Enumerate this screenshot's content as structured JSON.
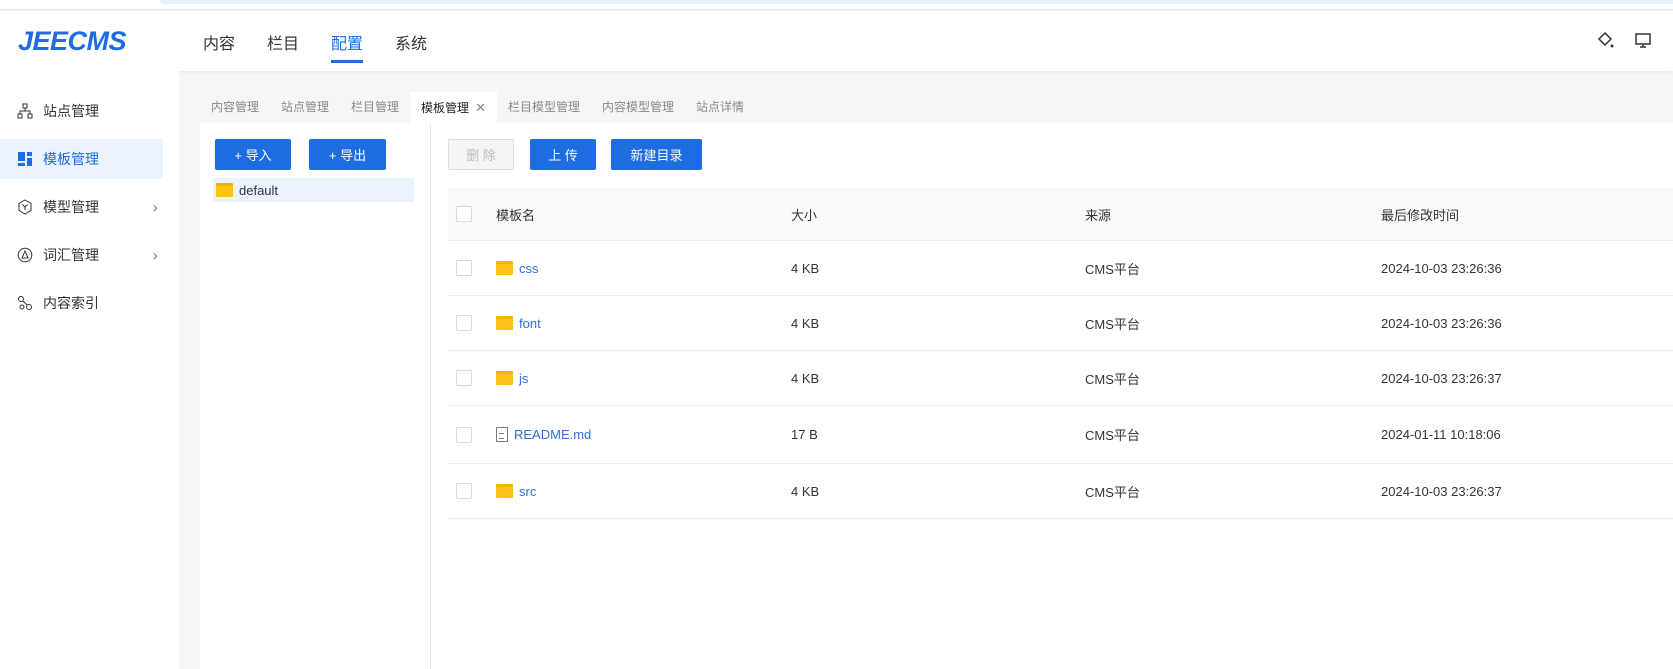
{
  "app": {
    "logo": "JEECMS"
  },
  "nav": [
    {
      "label": "内容"
    },
    {
      "label": "栏目"
    },
    {
      "label": "配置",
      "active": true
    },
    {
      "label": "系统"
    }
  ],
  "header_icons": [
    "theme-diamond-icon",
    "monitor-icon"
  ],
  "sidebar": {
    "items": [
      {
        "label": "站点管理",
        "icon": "sitemap-icon"
      },
      {
        "label": "模板管理",
        "icon": "template-icon",
        "active": true
      },
      {
        "label": "模型管理",
        "icon": "model-cube-icon",
        "expandable": true
      },
      {
        "label": "词汇管理",
        "icon": "vocabulary-icon",
        "expandable": true
      },
      {
        "label": "内容索引",
        "icon": "index-link-icon"
      }
    ]
  },
  "tabs": [
    {
      "label": "内容管理"
    },
    {
      "label": "站点管理"
    },
    {
      "label": "栏目管理"
    },
    {
      "label": "模板管理",
      "active": true,
      "close": "✕"
    },
    {
      "label": "栏目模型管理"
    },
    {
      "label": "内容模型管理"
    },
    {
      "label": "站点详情"
    }
  ],
  "left": {
    "import_label": "+ 导入",
    "export_label": "+ 导出",
    "tree": [
      {
        "label": "default"
      }
    ]
  },
  "toolbar": {
    "delete_label": "删 除",
    "upload_label": "上 传",
    "new_dir_label": "新建目录"
  },
  "table": {
    "columns": [
      "模板名",
      "大小",
      "来源",
      "最后修改时间"
    ],
    "rows": [
      {
        "name": "css",
        "type": "folder",
        "size": "4 KB",
        "source": "CMS平台",
        "modified": "2024-10-03 23:26:36"
      },
      {
        "name": "font",
        "type": "folder",
        "size": "4 KB",
        "source": "CMS平台",
        "modified": "2024-10-03 23:26:36"
      },
      {
        "name": "js",
        "type": "folder",
        "size": "4 KB",
        "source": "CMS平台",
        "modified": "2024-10-03 23:26:37"
      },
      {
        "name": "README.md",
        "type": "file",
        "size": "17 B",
        "source": "CMS平台",
        "modified": "2024-01-11 10:18:06"
      },
      {
        "name": "src",
        "type": "folder",
        "size": "4 KB",
        "source": "CMS平台",
        "modified": "2024-10-03 23:26:37"
      }
    ]
  },
  "colors": {
    "accent": "#1d6ce0",
    "folder": "#fcc419"
  }
}
